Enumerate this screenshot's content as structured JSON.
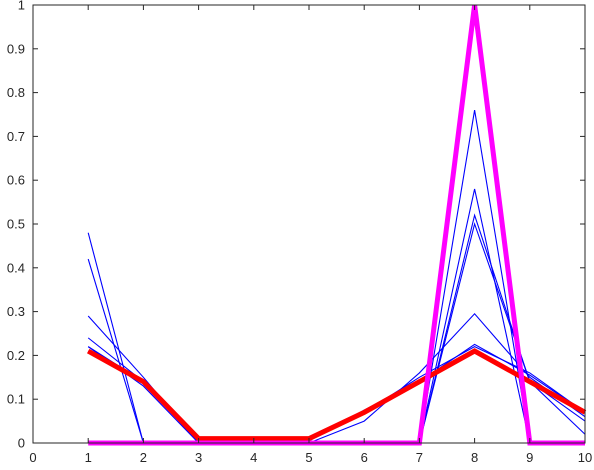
{
  "chart_data": {
    "type": "line",
    "title": "",
    "xlabel": "",
    "ylabel": "",
    "xlim": [
      0,
      10
    ],
    "ylim": [
      0,
      1
    ],
    "xticks": [
      "0",
      "1",
      "2",
      "3",
      "4",
      "5",
      "6",
      "7",
      "8",
      "9",
      "10"
    ],
    "yticks": [
      "0",
      "0.1",
      "0.2",
      "0.3",
      "0.4",
      "0.5",
      "0.6",
      "0.7",
      "0.8",
      "0.9",
      "1"
    ],
    "grid": false,
    "legend": "none",
    "x": [
      1,
      2,
      3,
      4,
      5,
      6,
      7,
      8,
      9,
      10
    ],
    "series": [
      {
        "color": "#0000ff",
        "line_width": "thin",
        "values": [
          0.48,
          0.0,
          0.0,
          0.0,
          0.0,
          0.0,
          0.0,
          0.76,
          0.0,
          0.0
        ]
      },
      {
        "color": "#0000ff",
        "line_width": "thin",
        "values": [
          0.42,
          0.0,
          0.0,
          0.0,
          0.0,
          0.0,
          0.0,
          0.58,
          0.0,
          0.0
        ]
      },
      {
        "color": "#0000ff",
        "line_width": "thin",
        "values": [
          0.29,
          0.15,
          0.0,
          0.0,
          0.0,
          0.0,
          0.0,
          0.52,
          0.14,
          0.05
        ]
      },
      {
        "color": "#0000ff",
        "line_width": "thin",
        "values": [
          0.24,
          0.14,
          0.0,
          0.0,
          0.0,
          0.0,
          0.0,
          0.5,
          0.14,
          0.02
        ]
      },
      {
        "color": "#0000ff",
        "line_width": "thin",
        "values": [
          0.22,
          0.13,
          0.0,
          0.0,
          0.0,
          0.05,
          0.16,
          0.295,
          0.15,
          0.06
        ]
      },
      {
        "color": "#0000ff",
        "line_width": "thin",
        "values": [
          0.22,
          0.14,
          0.005,
          0.005,
          0.005,
          0.07,
          0.15,
          0.22,
          0.16,
          0.07
        ]
      },
      {
        "color": "#0000ff",
        "line_width": "thin",
        "values": [
          0.21,
          0.14,
          0.007,
          0.007,
          0.007,
          0.075,
          0.14,
          0.225,
          0.155,
          0.07
        ]
      },
      {
        "color": "#ff0000",
        "line_width": "thick",
        "values": [
          0.21,
          0.14,
          0.01,
          0.01,
          0.01,
          0.07,
          0.14,
          0.21,
          0.14,
          0.07
        ]
      },
      {
        "color": "#ff00ff",
        "line_width": "thick",
        "values": [
          0.0,
          0.0,
          0.0,
          0.0,
          0.0,
          0.0,
          0.0,
          1.0,
          0.0,
          0.0
        ]
      }
    ]
  }
}
